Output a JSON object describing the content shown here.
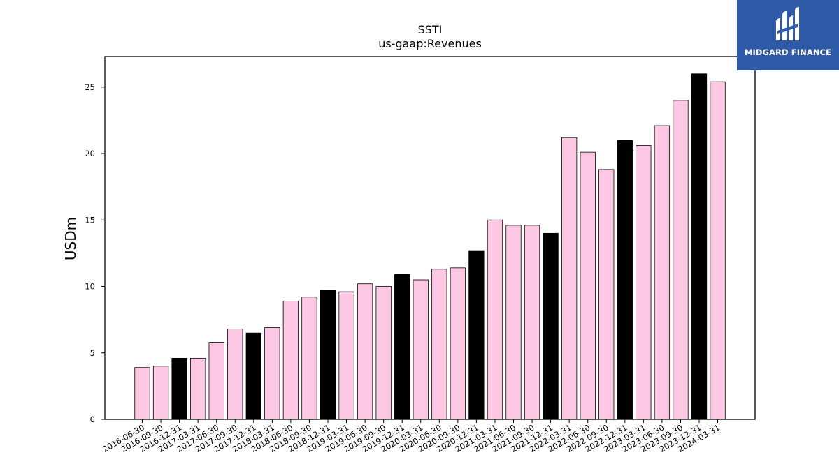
{
  "chart_data": {
    "type": "bar",
    "title": "SSTI",
    "subtitle": "us-gaap:Revenues",
    "ylabel": "USDm",
    "xlabel": "",
    "ylim": [
      0,
      27.3
    ],
    "yticks": [
      0,
      5,
      10,
      15,
      20,
      25
    ],
    "grid": false,
    "colors": {
      "quarter": "#fcc8e3",
      "year_end": "#000000",
      "edge": "#000000"
    },
    "categories": [
      "2016-06-30",
      "2016-09-30",
      "2016-12-31",
      "2017-03-31",
      "2017-06-30",
      "2017-09-30",
      "2017-12-31",
      "2018-03-31",
      "2018-06-30",
      "2018-09-30",
      "2018-12-31",
      "2019-03-31",
      "2019-06-30",
      "2019-09-30",
      "2019-12-31",
      "2020-03-31",
      "2020-06-30",
      "2020-09-30",
      "2020-12-31",
      "2021-03-31",
      "2021-06-30",
      "2021-09-30",
      "2021-12-31",
      "2022-03-31",
      "2022-06-30",
      "2022-09-30",
      "2022-12-31",
      "2023-03-31",
      "2023-06-30",
      "2023-09-30",
      "2023-12-31",
      "2024-03-31"
    ],
    "values": [
      3.9,
      4.0,
      4.6,
      4.6,
      5.8,
      6.8,
      6.5,
      6.9,
      8.9,
      9.2,
      9.7,
      9.6,
      10.2,
      10.0,
      10.9,
      10.5,
      11.3,
      11.4,
      12.7,
      15.0,
      14.6,
      14.6,
      14.0,
      21.2,
      20.1,
      18.8,
      21.0,
      20.6,
      22.1,
      24.0,
      26.0,
      25.4
    ]
  },
  "logo": {
    "text": "MIDGARD FINANCE"
  }
}
